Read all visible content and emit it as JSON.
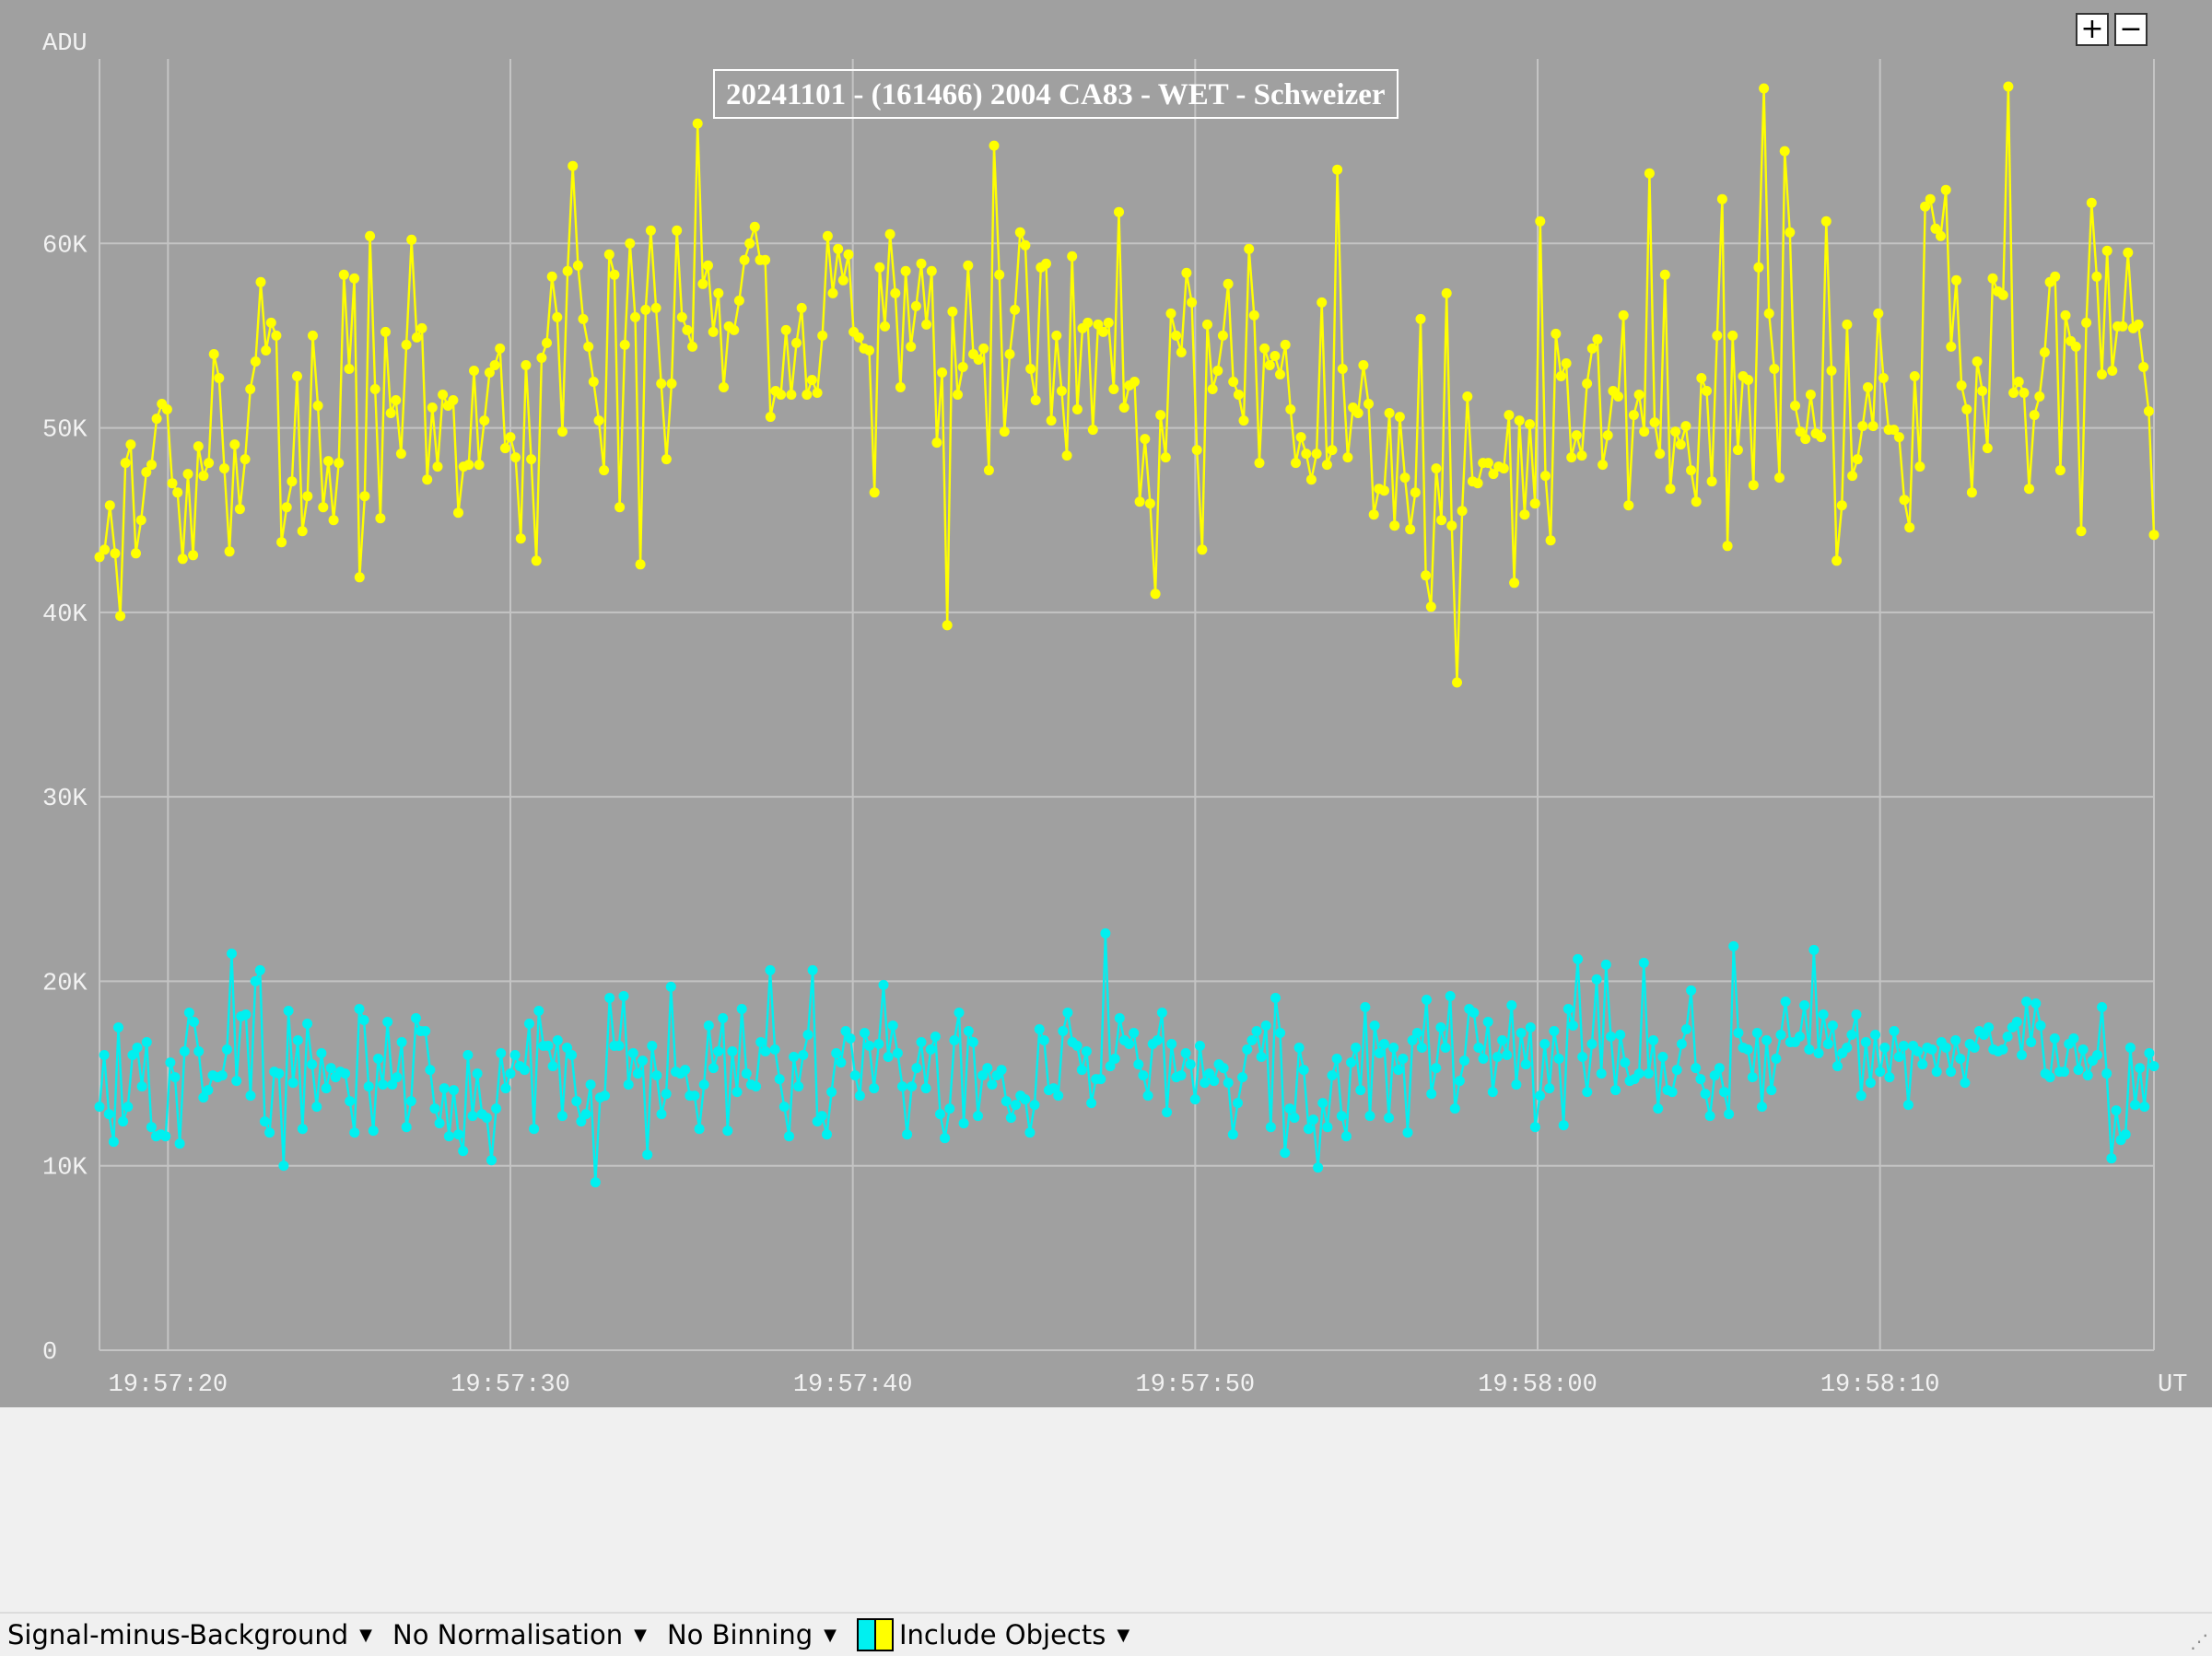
{
  "colors": {
    "plot_bg": "#a0a0a0",
    "target_series": "#ffff00",
    "comparison_series": "#00f0f0",
    "grid": "#c4c4c4"
  },
  "zoom": {
    "in_label": "+",
    "out_label": "−"
  },
  "chart_data": {
    "type": "line",
    "title": "20241101 - (161466) 2004 CA83 - WET - Schweizer",
    "ylabel": "ADU",
    "xlabel": "UT",
    "ylim": [
      0,
      70000
    ],
    "xlim": [
      "19:57:18",
      "19:58:18"
    ],
    "yticks": [
      0,
      10000,
      20000,
      30000,
      40000,
      50000,
      60000
    ],
    "ytick_labels": [
      "0",
      "10K",
      "20K",
      "30K",
      "40K",
      "50K",
      "60K"
    ],
    "xticks": [
      "19:57:20",
      "19:57:30",
      "19:57:40",
      "19:57:50",
      "19:58:00",
      "19:58:10"
    ],
    "grid": true,
    "markers": true,
    "series": [
      {
        "color": "#ffff00",
        "x_start": "19:57:18",
        "x_end": "19:58:18",
        "values": [
          43000,
          43400,
          45800,
          43200,
          39800,
          48100,
          49100,
          43200,
          45000,
          47600,
          48000,
          50500,
          51300,
          51000,
          47000,
          46500,
          42900,
          47500,
          43100,
          49000,
          47400,
          48100,
          54000,
          52700,
          47800,
          43300,
          49100,
          45600,
          48300,
          52100,
          53600,
          57900,
          54200,
          55700,
          55000,
          43800,
          45700,
          47100,
          52800,
          44400,
          46300,
          55000,
          51200,
          45700,
          48200,
          45000,
          48100,
          58300,
          53200,
          58100,
          41900,
          46300,
          60400,
          52100,
          45100,
          55200,
          50800,
          51500,
          48600,
          54500,
          60200,
          54900,
          55400,
          47200,
          51100,
          47900,
          51800,
          51200,
          51500,
          45400,
          47900,
          48000,
          53100,
          48000,
          50400,
          53000,
          53400,
          54300,
          48900,
          49500,
          48400,
          44000,
          53400,
          48300,
          42800,
          53800,
          54600,
          58200,
          56000,
          49800,
          58500,
          64200,
          58800,
          55900,
          54400,
          52500,
          50400,
          47700,
          59400,
          58300,
          45700,
          54500,
          60000,
          56000,
          42600,
          56400,
          60700,
          56500,
          52400,
          48300,
          52400,
          60700,
          56000,
          55300,
          54400,
          66500,
          57800,
          58800,
          55200,
          57300,
          52200,
          55500,
          55300,
          56900,
          59100,
          60000,
          60900,
          59100,
          59100,
          50600,
          52000,
          51800,
          55300,
          51800,
          54600,
          56500,
          51800,
          52600,
          51900,
          55000,
          60400,
          57300,
          59700,
          58000,
          59400,
          55200,
          54900,
          54300,
          54200,
          46500,
          58700,
          55500,
          60500,
          57300,
          52200,
          58500,
          54400,
          56600,
          58900,
          55600,
          58500,
          49200,
          53000,
          39300,
          56300,
          51800,
          53300,
          58800,
          54000,
          53700,
          54300,
          47700,
          65300,
          58300,
          49800,
          54000,
          56400,
          60600,
          59900,
          53200,
          51500,
          58700,
          58900,
          50400,
          55000,
          52000,
          48500,
          59300,
          51000,
          55400,
          55700,
          49900,
          55600,
          55200,
          55700,
          52100,
          61700,
          51100,
          52300,
          52500,
          46000,
          49400,
          45900,
          41000,
          50700,
          48400,
          56200,
          55000,
          54100,
          58400,
          56800,
          48800,
          43400,
          55600,
          52100,
          53100,
          55000,
          57800,
          52500,
          51800,
          50400,
          59700,
          56100,
          48100,
          54300,
          53400,
          53900,
          52900,
          54500,
          51000,
          48100,
          49500,
          48600,
          47200,
          48600,
          56800,
          48000,
          48800,
          64000,
          53200,
          48400,
          51100,
          50800,
          53400,
          51300,
          45300,
          46700,
          46600,
          50800,
          44700,
          50600,
          47300,
          44500,
          46500,
          55900,
          42000,
          40300,
          47800,
          45000,
          57300,
          44700,
          36200,
          45500,
          51700,
          47100,
          47000,
          48100,
          48100,
          47500,
          47900,
          47800,
          50700,
          41600,
          50400,
          45300,
          50200,
          45900,
          61200,
          47400,
          43900,
          55100,
          52800,
          53500,
          48400,
          49600,
          48500,
          52400,
          54300,
          54800,
          48000,
          49600,
          52000,
          51700,
          56100,
          45800,
          50700,
          51800,
          49800,
          63800,
          50300,
          48600,
          58300,
          46700,
          49800,
          49100,
          50100,
          47700,
          46000,
          52700,
          52000,
          47100,
          55000,
          62400,
          43600,
          55000,
          48800,
          52800,
          52600,
          46900,
          58700,
          68400,
          56200,
          53200,
          47300,
          65000,
          60600,
          51200,
          49800,
          49400,
          51800,
          49700,
          49500,
          61200,
          53100,
          42800,
          45800,
          55600,
          47400,
          48300,
          50100,
          52200,
          50100,
          56200,
          52700,
          49900,
          49900,
          49500,
          46100,
          44600,
          52800,
          47900,
          62000,
          62400,
          60800,
          60400,
          62900,
          54400,
          58000,
          52300,
          51000,
          46500,
          53600,
          52000,
          48900,
          58100,
          57400,
          57200,
          68500,
          51900,
          52500,
          51900,
          46700,
          50700,
          51700,
          54100,
          57900,
          58200,
          47700,
          56100,
          54700,
          54400,
          44400,
          55700,
          62200,
          58200,
          52900,
          59600,
          53100,
          55500,
          55500,
          59500,
          55400,
          55600,
          53300,
          50900,
          44200
        ]
      },
      {
        "color": "#00f0f0",
        "x_start": "19:57:18",
        "x_end": "19:58:18",
        "values": [
          13200,
          16000,
          12800,
          11300,
          17500,
          12400,
          13200,
          16000,
          16400,
          14300,
          16700,
          12100,
          11600,
          11700,
          11600,
          15600,
          14800,
          11200,
          16200,
          18300,
          17800,
          16200,
          13700,
          14100,
          14900,
          14800,
          14900,
          16300,
          21500,
          14600,
          18100,
          18200,
          13800,
          20000,
          20600,
          12400,
          11800,
          15100,
          15000,
          10000,
          18400,
          14500,
          16800,
          12000,
          17700,
          15500,
          13200,
          16100,
          14200,
          15300,
          14800,
          15100,
          15000,
          13500,
          11800,
          18500,
          17900,
          14300,
          11900,
          15800,
          14400,
          17800,
          14400,
          14800,
          16700,
          12100,
          13500,
          18000,
          17300,
          17300,
          15200,
          13100,
          12300,
          14200,
          11600,
          14100,
          11700,
          10800,
          16000,
          12700,
          15000,
          12800,
          12600,
          10300,
          13100,
          16100,
          14200,
          15000,
          16000,
          15400,
          15200,
          17700,
          12000,
          18400,
          16500,
          16500,
          15400,
          16800,
          12700,
          16400,
          16000,
          13500,
          12400,
          12800,
          14400,
          9100,
          13700,
          13800,
          19100,
          16500,
          16500,
          19200,
          14400,
          16100,
          15000,
          15700,
          10600,
          16500,
          14900,
          12800,
          13900,
          19700,
          15100,
          15000,
          15200,
          13800,
          13800,
          12000,
          14400,
          17600,
          15300,
          16200,
          18000,
          11900,
          16200,
          14000,
          18500,
          15000,
          14400,
          14300,
          16700,
          16200,
          20600,
          16300,
          14700,
          13200,
          11600,
          15900,
          14300,
          16000,
          17100,
          20600,
          12400,
          12700,
          11700,
          14000,
          16100,
          15600,
          17300,
          16900,
          14900,
          13800,
          17200,
          16500,
          14200,
          16600,
          19800,
          15900,
          17600,
          16100,
          14300,
          11700,
          14300,
          15300,
          16700,
          14200,
          16300,
          17000,
          12800,
          11500,
          13100,
          16800,
          18300,
          12300,
          17300,
          16700,
          12700,
          14900,
          15300,
          14400,
          14900,
          15200,
          13500,
          12600,
          13300,
          13800,
          13600,
          11800,
          13300,
          17400,
          16800,
          14100,
          14200,
          13800,
          17300,
          18300,
          16700,
          16500,
          15200,
          16200,
          13400,
          14700,
          14700,
          22600,
          15400,
          15800,
          18000,
          16800,
          16600,
          17200,
          15500,
          14900,
          13800,
          16600,
          16800,
          18300,
          12900,
          16600,
          14800,
          14900,
          16100,
          15500,
          13600,
          16500,
          14500,
          15000,
          14600,
          15500,
          15300,
          14500,
          11700,
          13400,
          14800,
          16300,
          16800,
          17300,
          15900,
          17600,
          12100,
          19100,
          17200,
          10700,
          13100,
          12600,
          16400,
          15200,
          12000,
          12500,
          9900,
          13400,
          12100,
          14900,
          15800,
          12700,
          11600,
          15600,
          16400,
          14100,
          18600,
          12700,
          17600,
          16100,
          16600,
          12600,
          16400,
          15200,
          15800,
          11800,
          16800,
          17200,
          16400,
          19000,
          13900,
          15300,
          17500,
          16400,
          19200,
          13100,
          14600,
          15700,
          18500,
          18300,
          16400,
          15800,
          17800,
          14000,
          15900,
          16800,
          16000,
          18700,
          14400,
          17200,
          15500,
          17500,
          12100,
          13800,
          16600,
          14200,
          17300,
          15800,
          12200,
          18500,
          17600,
          21200,
          15900,
          14000,
          16600,
          20100,
          15000,
          20900,
          17000,
          14100,
          17100,
          15600,
          14600,
          14700,
          15000,
          21000,
          15000,
          16800,
          13100,
          15900,
          14100,
          14000,
          15200,
          16600,
          17400,
          19500,
          15300,
          14700,
          13900,
          12700,
          14900,
          15300,
          14000,
          12800,
          21900,
          17200,
          16400,
          16300,
          14800,
          17200,
          13200,
          16800,
          14100,
          15800,
          17100,
          18900,
          16700,
          16700,
          17000,
          18700,
          16300,
          21700,
          16100,
          18200,
          16600,
          17600,
          15400,
          16100,
          16400,
          17100,
          18200,
          13800,
          16700,
          14500,
          17100,
          15100,
          16400,
          14800,
          17300,
          15900,
          16500,
          13300,
          16500,
          16200,
          15500,
          16400,
          16300,
          15100,
          16700,
          16400,
          15100,
          16800,
          15800,
          14500,
          16600,
          16400,
          17300,
          17100,
          17500,
          16300,
          16200,
          16300,
          17000,
          17500,
          17800,
          16000,
          18900,
          16700,
          18800,
          17600,
          15000,
          14800,
          16900,
          15100,
          15100,
          16600,
          16900,
          15200,
          16300,
          14900,
          15700,
          16000,
          18600,
          15000,
          10400,
          13000,
          11400,
          11700,
          16400,
          13300,
          15300,
          13200,
          16100,
          15400
        ]
      }
    ]
  },
  "toolbar": {
    "items": [
      {
        "label": "Signal-minus-Background"
      },
      {
        "label": "No Normalisation"
      },
      {
        "label": "No Binning"
      },
      {
        "label": "Include Objects"
      }
    ]
  }
}
